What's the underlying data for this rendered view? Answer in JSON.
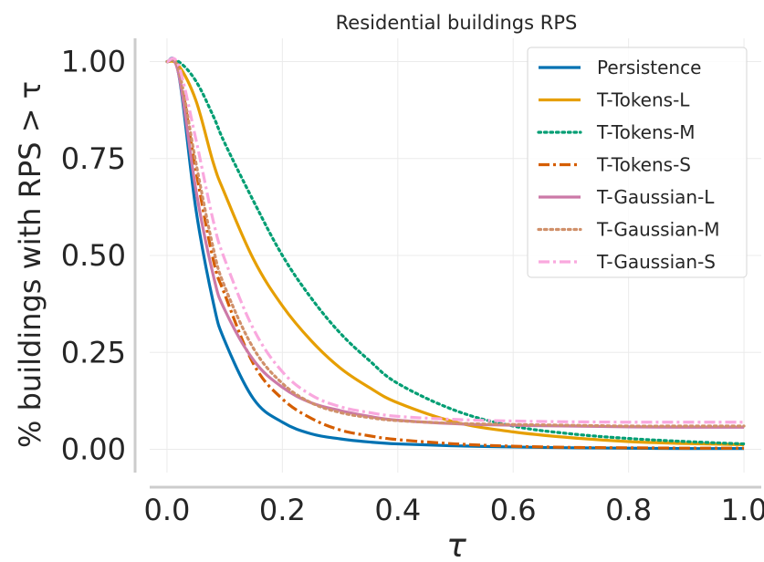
{
  "chart_data": {
    "type": "line",
    "title": "Residential buildings RPS",
    "xlabel": "τ",
    "ylabel": "% buildings with RPS  > τ",
    "xlim": [
      -0.03,
      1.03
    ],
    "ylim": [
      -0.06,
      1.06
    ],
    "xticks": [
      "0.0",
      "0.2",
      "0.4",
      "0.6",
      "0.8",
      "1.0"
    ],
    "yticks": [
      "0.00",
      "0.25",
      "0.50",
      "0.75",
      "1.00"
    ],
    "grid": true,
    "legend_position": "top-right",
    "x": [
      0.0,
      0.02,
      0.05,
      0.08,
      0.1,
      0.15,
      0.2,
      0.25,
      0.3,
      0.35,
      0.4,
      0.5,
      0.6,
      0.7,
      0.8,
      0.9,
      1.0
    ],
    "series": [
      {
        "name": "Persistence",
        "color": "#0072b2",
        "dash": "solid",
        "values": [
          1.0,
          0.97,
          0.62,
          0.38,
          0.28,
          0.13,
          0.07,
          0.04,
          0.027,
          0.019,
          0.014,
          0.009,
          0.006,
          0.004,
          0.003,
          0.002,
          0.002
        ]
      },
      {
        "name": "T-Tokens-L",
        "color": "#e69f00",
        "dash": "solid",
        "values": [
          1.0,
          0.99,
          0.9,
          0.74,
          0.66,
          0.49,
          0.37,
          0.28,
          0.21,
          0.16,
          0.12,
          0.07,
          0.045,
          0.03,
          0.02,
          0.015,
          0.012
        ]
      },
      {
        "name": "T-Tokens-M",
        "color": "#009e73",
        "dash": "dotted",
        "values": [
          1.0,
          1.0,
          0.95,
          0.86,
          0.79,
          0.64,
          0.5,
          0.39,
          0.3,
          0.23,
          0.17,
          0.1,
          0.06,
          0.04,
          0.028,
          0.02,
          0.014
        ]
      },
      {
        "name": "T-Tokens-S",
        "color": "#d55e00",
        "dash": "dashdot",
        "values": [
          1.0,
          0.98,
          0.72,
          0.49,
          0.4,
          0.22,
          0.13,
          0.08,
          0.05,
          0.035,
          0.025,
          0.014,
          0.008,
          0.005,
          0.004,
          0.003,
          0.003
        ]
      },
      {
        "name": "T-Gaussian-L",
        "color": "#cc79a7",
        "dash": "solid",
        "values": [
          1.0,
          0.97,
          0.67,
          0.45,
          0.36,
          0.23,
          0.16,
          0.12,
          0.1,
          0.085,
          0.075,
          0.066,
          0.062,
          0.06,
          0.058,
          0.057,
          0.057
        ]
      },
      {
        "name": "T-Gaussian-M",
        "color": "#d0906a",
        "dash": "dotted",
        "values": [
          1.0,
          0.98,
          0.74,
          0.52,
          0.42,
          0.26,
          0.17,
          0.12,
          0.095,
          0.082,
          0.074,
          0.067,
          0.064,
          0.062,
          0.06,
          0.06,
          0.06
        ]
      },
      {
        "name": "T-Gaussian-S",
        "color": "#f9a8de",
        "dash": "dashdot",
        "values": [
          1.0,
          0.99,
          0.8,
          0.59,
          0.49,
          0.31,
          0.2,
          0.14,
          0.11,
          0.095,
          0.085,
          0.077,
          0.073,
          0.071,
          0.07,
          0.07,
          0.07
        ]
      }
    ]
  }
}
